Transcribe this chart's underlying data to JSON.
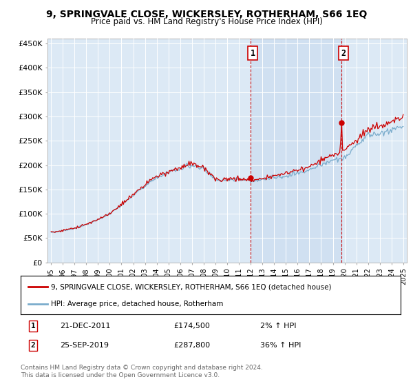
{
  "title": "9, SPRINGVALE CLOSE, WICKERSLEY, ROTHERHAM, S66 1EQ",
  "subtitle": "Price paid vs. HM Land Registry's House Price Index (HPI)",
  "ylabel_ticks": [
    "£0",
    "£50K",
    "£100K",
    "£150K",
    "£200K",
    "£250K",
    "£300K",
    "£350K",
    "£400K",
    "£450K"
  ],
  "ytick_values": [
    0,
    50000,
    100000,
    150000,
    200000,
    250000,
    300000,
    350000,
    400000,
    450000
  ],
  "ylim": [
    0,
    460000
  ],
  "xlim_start": 1995,
  "xlim_end": 2025,
  "background_color": "#dce9f5",
  "plot_bg_color": "#dce9f5",
  "fig_bg_color": "#ffffff",
  "shade_bg_color": "#ccddf0",
  "red_line_color": "#cc0000",
  "blue_line_color": "#7aaccc",
  "sale1_x": 2011.97,
  "sale1_y": 174500,
  "sale2_x": 2019.73,
  "sale2_y": 287800,
  "sale1_label": "21-DEC-2011",
  "sale2_label": "25-SEP-2019",
  "sale1_price": "£174,500",
  "sale2_price": "£287,800",
  "sale1_pct": "2% ↑ HPI",
  "sale2_pct": "36% ↑ HPI",
  "legend_line1": "9, SPRINGVALE CLOSE, WICKERSLEY, ROTHERHAM, S66 1EQ (detached house)",
  "legend_line2": "HPI: Average price, detached house, Rotherham",
  "footer": "Contains HM Land Registry data © Crown copyright and database right 2024.\nThis data is licensed under the Open Government Licence v3.0.",
  "xtick_years": [
    1995,
    1996,
    1997,
    1998,
    1999,
    2000,
    2001,
    2002,
    2003,
    2004,
    2005,
    2006,
    2007,
    2008,
    2009,
    2010,
    2011,
    2012,
    2013,
    2014,
    2015,
    2016,
    2017,
    2018,
    2019,
    2020,
    2021,
    2022,
    2023,
    2024,
    2025
  ]
}
